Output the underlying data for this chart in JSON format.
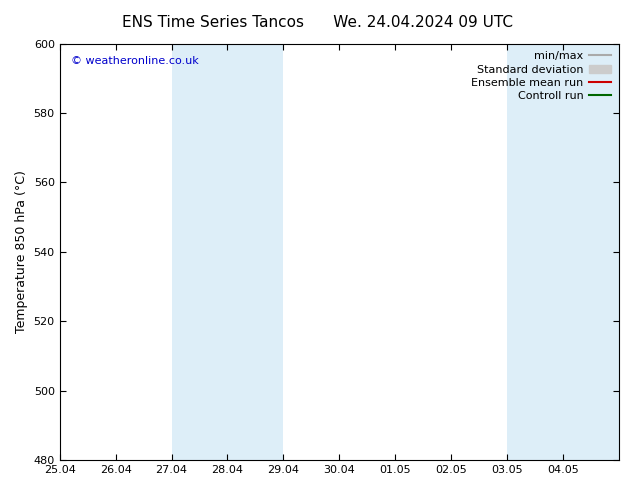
{
  "title": "ENS Time Series Tancos",
  "title2": "We. 24.04.2024 09 UTC",
  "ylabel": "Temperature 850 hPa (°C)",
  "watermark": "© weatheronline.co.uk",
  "ylim": [
    480,
    600
  ],
  "yticks": [
    480,
    500,
    520,
    540,
    560,
    580,
    600
  ],
  "bg_color": "#ffffff",
  "plot_bg_color": "#ffffff",
  "shade_color": "#ddeef8",
  "x_labels": [
    "25.04",
    "26.04",
    "27.04",
    "28.04",
    "29.04",
    "30.04",
    "01.05",
    "02.05",
    "03.05",
    "04.05"
  ],
  "shade_regions": [
    {
      "start": 2,
      "end": 3
    },
    {
      "start": 3,
      "end": 4
    },
    {
      "start": 8,
      "end": 9
    },
    {
      "start": 9,
      "end": 10
    }
  ],
  "legend_items": [
    {
      "label": "min/max",
      "color": "#aaaaaa",
      "lw": 1.5,
      "style": "solid"
    },
    {
      "label": "Standard deviation",
      "color": "#cccccc",
      "lw": 7,
      "style": "solid"
    },
    {
      "label": "Ensemble mean run",
      "color": "#cc0000",
      "lw": 1.5,
      "style": "solid"
    },
    {
      "label": "Controll run",
      "color": "#006600",
      "lw": 1.5,
      "style": "solid"
    }
  ],
  "title_fontsize": 11,
  "label_fontsize": 9,
  "tick_fontsize": 8,
  "watermark_fontsize": 8,
  "watermark_color": "#0000cc"
}
